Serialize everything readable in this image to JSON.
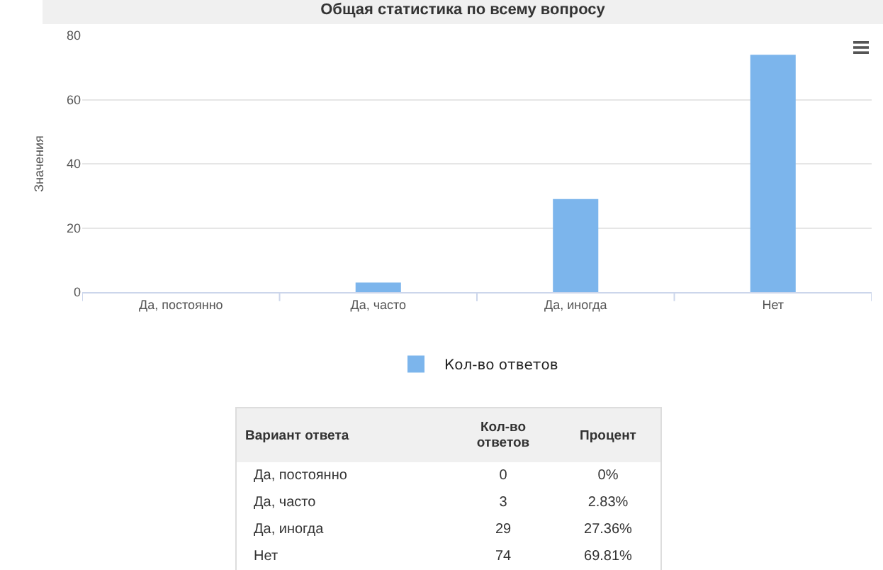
{
  "chart_data": {
    "type": "bar",
    "title": "Общая статистика по всему вопросу",
    "ylabel": "Значения",
    "categories": [
      "Да, постоянно",
      "Да, часто",
      "Да, иногда",
      "Нет"
    ],
    "series": [
      {
        "name": "Кол-во ответов",
        "color": "#7cb5ec",
        "values": [
          0,
          3,
          29,
          74
        ]
      }
    ],
    "ylim": [
      0,
      80
    ],
    "yticks": [
      0,
      20,
      40,
      60,
      80
    ],
    "grid": "y",
    "legend": "bottom",
    "annotations": [
      "Вариант ответа",
      "Кол-во ответов",
      "Процент",
      "0",
      "0%",
      "3",
      "2.83%",
      "29",
      "27.36%",
      "74",
      "69.81%"
    ]
  }
}
